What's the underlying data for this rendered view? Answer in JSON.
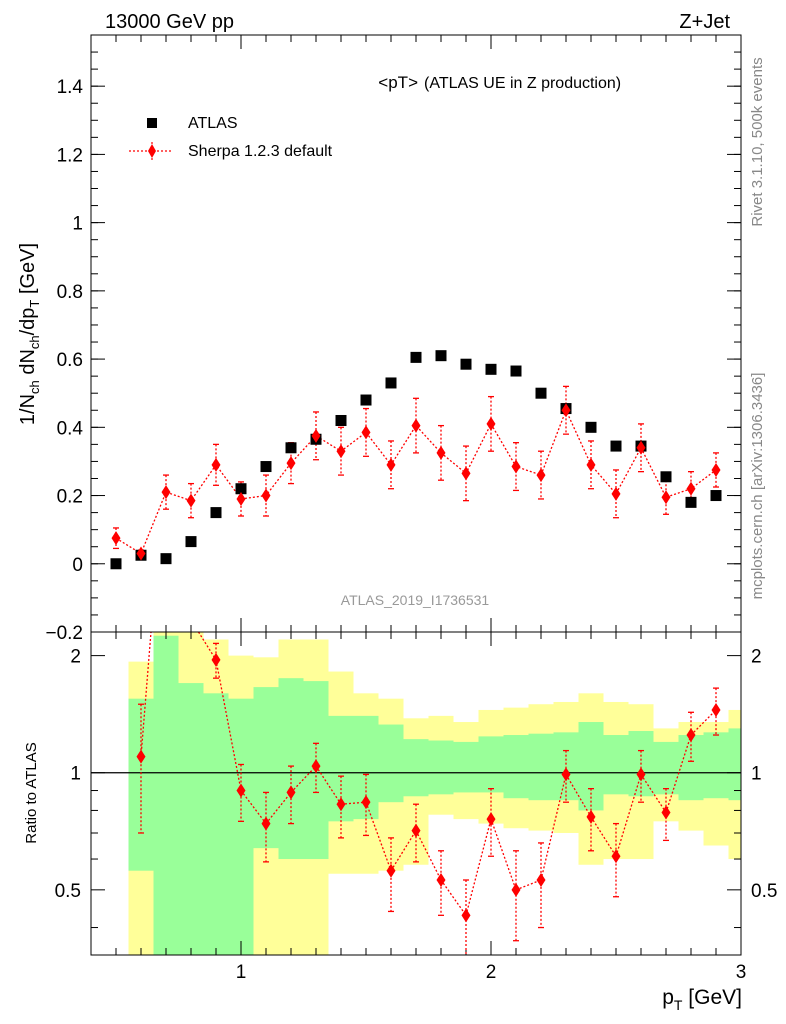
{
  "header": {
    "left": "13000 GeV pp",
    "right": "Z+Jet"
  },
  "side_labels": {
    "rivet": "Rivet 3.1.10,  500k events",
    "mcplots": "mcplots.cern.ch [arXiv:1306.3436]"
  },
  "main_panel": {
    "title_main": "<pT>",
    "title_sub": "(ATLAS UE in Z production)",
    "watermark": "ATLAS_2019_I1736531",
    "ylabel": "1/N_ch dN_ch/dp_T [GeV]",
    "ylim": [
      -0.2,
      1.55
    ],
    "yticks": [
      {
        "v": -0.2,
        "label": "−0.2"
      },
      {
        "v": 0,
        "label": "0"
      },
      {
        "v": 0.2,
        "label": "0.2"
      },
      {
        "v": 0.4,
        "label": "0.4"
      },
      {
        "v": 0.6,
        "label": "0.6"
      },
      {
        "v": 0.8,
        "label": "0.8"
      },
      {
        "v": 1.0,
        "label": "1"
      },
      {
        "v": 1.2,
        "label": "1.2"
      },
      {
        "v": 1.4,
        "label": "1.4"
      }
    ],
    "legend": [
      {
        "label": "ATLAS",
        "marker": "square",
        "color": "#000000"
      },
      {
        "label": "Sherpa 1.2.3 default",
        "marker": "diamond",
        "color": "#ff0000"
      }
    ]
  },
  "ratio_panel": {
    "ylabel": "Ratio to ATLAS",
    "ylim": [
      0.34,
      2.3
    ],
    "yticks": [
      {
        "v": 0.5,
        "label": "0.5"
      },
      {
        "v": 1,
        "label": "1"
      },
      {
        "v": 2,
        "label": "2"
      }
    ]
  },
  "x_axis": {
    "label": "p_T [GeV]",
    "xlim": [
      0.4,
      3.0
    ],
    "ticks": [
      {
        "v": 1,
        "label": "1"
      },
      {
        "v": 2,
        "label": "2"
      },
      {
        "v": 3,
        "label": "3"
      }
    ]
  },
  "colors": {
    "data": "#000000",
    "mc": "#ff0000",
    "band_inner": "#99ff99",
    "band_outer": "#ffff99"
  },
  "chart_data": {
    "type": "scatter",
    "x": [
      0.5,
      0.6,
      0.7,
      0.8,
      0.9,
      1.0,
      1.1,
      1.2,
      1.3,
      1.4,
      1.5,
      1.6,
      1.7,
      1.8,
      1.9,
      2.0,
      2.1,
      2.2,
      2.3,
      2.4,
      2.5,
      2.6,
      2.7,
      2.8,
      2.9
    ],
    "series": [
      {
        "name": "ATLAS",
        "values": [
          0.0,
          0.025,
          0.015,
          0.065,
          0.15,
          0.22,
          0.285,
          0.34,
          0.365,
          0.42,
          0.48,
          0.53,
          0.605,
          0.61,
          0.585,
          0.57,
          0.565,
          0.5,
          0.455,
          0.4,
          0.345,
          0.345,
          0.255,
          0.18,
          0.2
        ]
      },
      {
        "name": "Sherpa 1.2.3 default",
        "values": [
          0.075,
          0.03,
          0.21,
          0.185,
          0.29,
          0.19,
          0.2,
          0.295,
          0.375,
          0.33,
          0.385,
          0.29,
          0.405,
          0.325,
          0.265,
          0.41,
          0.285,
          0.26,
          0.45,
          0.29,
          0.205,
          0.34,
          0.195,
          0.22,
          0.275
        ],
        "errors": [
          0.03,
          0.01,
          0.05,
          0.05,
          0.06,
          0.05,
          0.06,
          0.06,
          0.07,
          0.07,
          0.07,
          0.07,
          0.08,
          0.08,
          0.08,
          0.08,
          0.07,
          0.07,
          0.07,
          0.07,
          0.07,
          0.07,
          0.05,
          0.05,
          0.05
        ]
      }
    ],
    "ratio": {
      "values": [
        null,
        1.1,
        null,
        null,
        1.95,
        0.9,
        0.74,
        0.89,
        1.04,
        0.83,
        0.84,
        0.56,
        0.71,
        0.53,
        0.43,
        0.76,
        0.5,
        0.53,
        0.99,
        0.77,
        0.61,
        0.99,
        0.79,
        1.25,
        1.45
      ],
      "errors": [
        null,
        0.4,
        null,
        null,
        0.2,
        0.15,
        0.15,
        0.15,
        0.15,
        0.15,
        0.15,
        0.12,
        0.12,
        0.1,
        0.1,
        0.15,
        0.13,
        0.13,
        0.15,
        0.14,
        0.13,
        0.15,
        0.12,
        0.18,
        0.2
      ],
      "bands": [
        {
          "x0": 0.55,
          "x1": 0.65,
          "inner": [
            0.56,
            1.55
          ],
          "outer": [
            0.34,
            1.93
          ]
        },
        {
          "x0": 0.65,
          "x1": 0.75,
          "inner": [
            0.34,
            2.25
          ],
          "outer": [
            0.34,
            2.3
          ]
        },
        {
          "x0": 0.75,
          "x1": 0.85,
          "inner": [
            0.34,
            1.7
          ],
          "outer": [
            0.34,
            2.3
          ]
        },
        {
          "x0": 0.85,
          "x1": 0.95,
          "inner": [
            0.34,
            1.6
          ],
          "outer": [
            0.34,
            2.2
          ]
        },
        {
          "x0": 0.95,
          "x1": 1.05,
          "inner": [
            0.34,
            1.55
          ],
          "outer": [
            0.34,
            2.0
          ]
        },
        {
          "x0": 1.05,
          "x1": 1.15,
          "inner": [
            0.64,
            1.66
          ],
          "outer": [
            0.34,
            1.98
          ]
        },
        {
          "x0": 1.15,
          "x1": 1.25,
          "inner": [
            0.6,
            1.75
          ],
          "outer": [
            0.34,
            2.2
          ]
        },
        {
          "x0": 1.25,
          "x1": 1.35,
          "inner": [
            0.6,
            1.72
          ],
          "outer": [
            0.34,
            2.2
          ]
        },
        {
          "x0": 1.35,
          "x1": 1.45,
          "inner": [
            0.75,
            1.4
          ],
          "outer": [
            0.55,
            1.82
          ]
        },
        {
          "x0": 1.45,
          "x1": 1.55,
          "inner": [
            0.76,
            1.4
          ],
          "outer": [
            0.55,
            1.6
          ]
        },
        {
          "x0": 1.55,
          "x1": 1.65,
          "inner": [
            0.84,
            1.33
          ],
          "outer": [
            0.56,
            1.55
          ]
        },
        {
          "x0": 1.65,
          "x1": 1.75,
          "inner": [
            0.87,
            1.22
          ],
          "outer": [
            0.58,
            1.38
          ]
        },
        {
          "x0": 1.75,
          "x1": 1.85,
          "inner": [
            0.88,
            1.21
          ],
          "outer": [
            0.78,
            1.4
          ]
        },
        {
          "x0": 1.85,
          "x1": 1.95,
          "inner": [
            0.89,
            1.2
          ],
          "outer": [
            0.76,
            1.35
          ]
        },
        {
          "x0": 1.95,
          "x1": 2.05,
          "inner": [
            0.89,
            1.24
          ],
          "outer": [
            0.74,
            1.45
          ]
        },
        {
          "x0": 2.05,
          "x1": 2.15,
          "inner": [
            0.86,
            1.25
          ],
          "outer": [
            0.72,
            1.47
          ]
        },
        {
          "x0": 2.15,
          "x1": 2.25,
          "inner": [
            0.85,
            1.26
          ],
          "outer": [
            0.71,
            1.5
          ]
        },
        {
          "x0": 2.25,
          "x1": 2.35,
          "inner": [
            0.85,
            1.27
          ],
          "outer": [
            0.7,
            1.52
          ]
        },
        {
          "x0": 2.35,
          "x1": 2.45,
          "inner": [
            0.8,
            1.35
          ],
          "outer": [
            0.58,
            1.6
          ]
        },
        {
          "x0": 2.45,
          "x1": 2.55,
          "inner": [
            0.88,
            1.25
          ],
          "outer": [
            0.6,
            1.52
          ]
        },
        {
          "x0": 2.55,
          "x1": 2.65,
          "inner": [
            0.87,
            1.28
          ],
          "outer": [
            0.6,
            1.5
          ]
        },
        {
          "x0": 2.65,
          "x1": 2.75,
          "inner": [
            0.88,
            1.2
          ],
          "outer": [
            0.75,
            1.3
          ]
        },
        {
          "x0": 2.75,
          "x1": 2.85,
          "inner": [
            0.85,
            1.25
          ],
          "outer": [
            0.71,
            1.35
          ]
        },
        {
          "x0": 2.85,
          "x1": 2.95,
          "inner": [
            0.86,
            1.27
          ],
          "outer": [
            0.65,
            1.35
          ]
        },
        {
          "x0": 2.95,
          "x1": 3.0,
          "inner": [
            0.85,
            1.3
          ],
          "outer": [
            0.6,
            1.45
          ]
        }
      ]
    },
    "ylim": [
      -0.2,
      1.55
    ],
    "xlim": [
      0.4,
      3.0
    ]
  }
}
